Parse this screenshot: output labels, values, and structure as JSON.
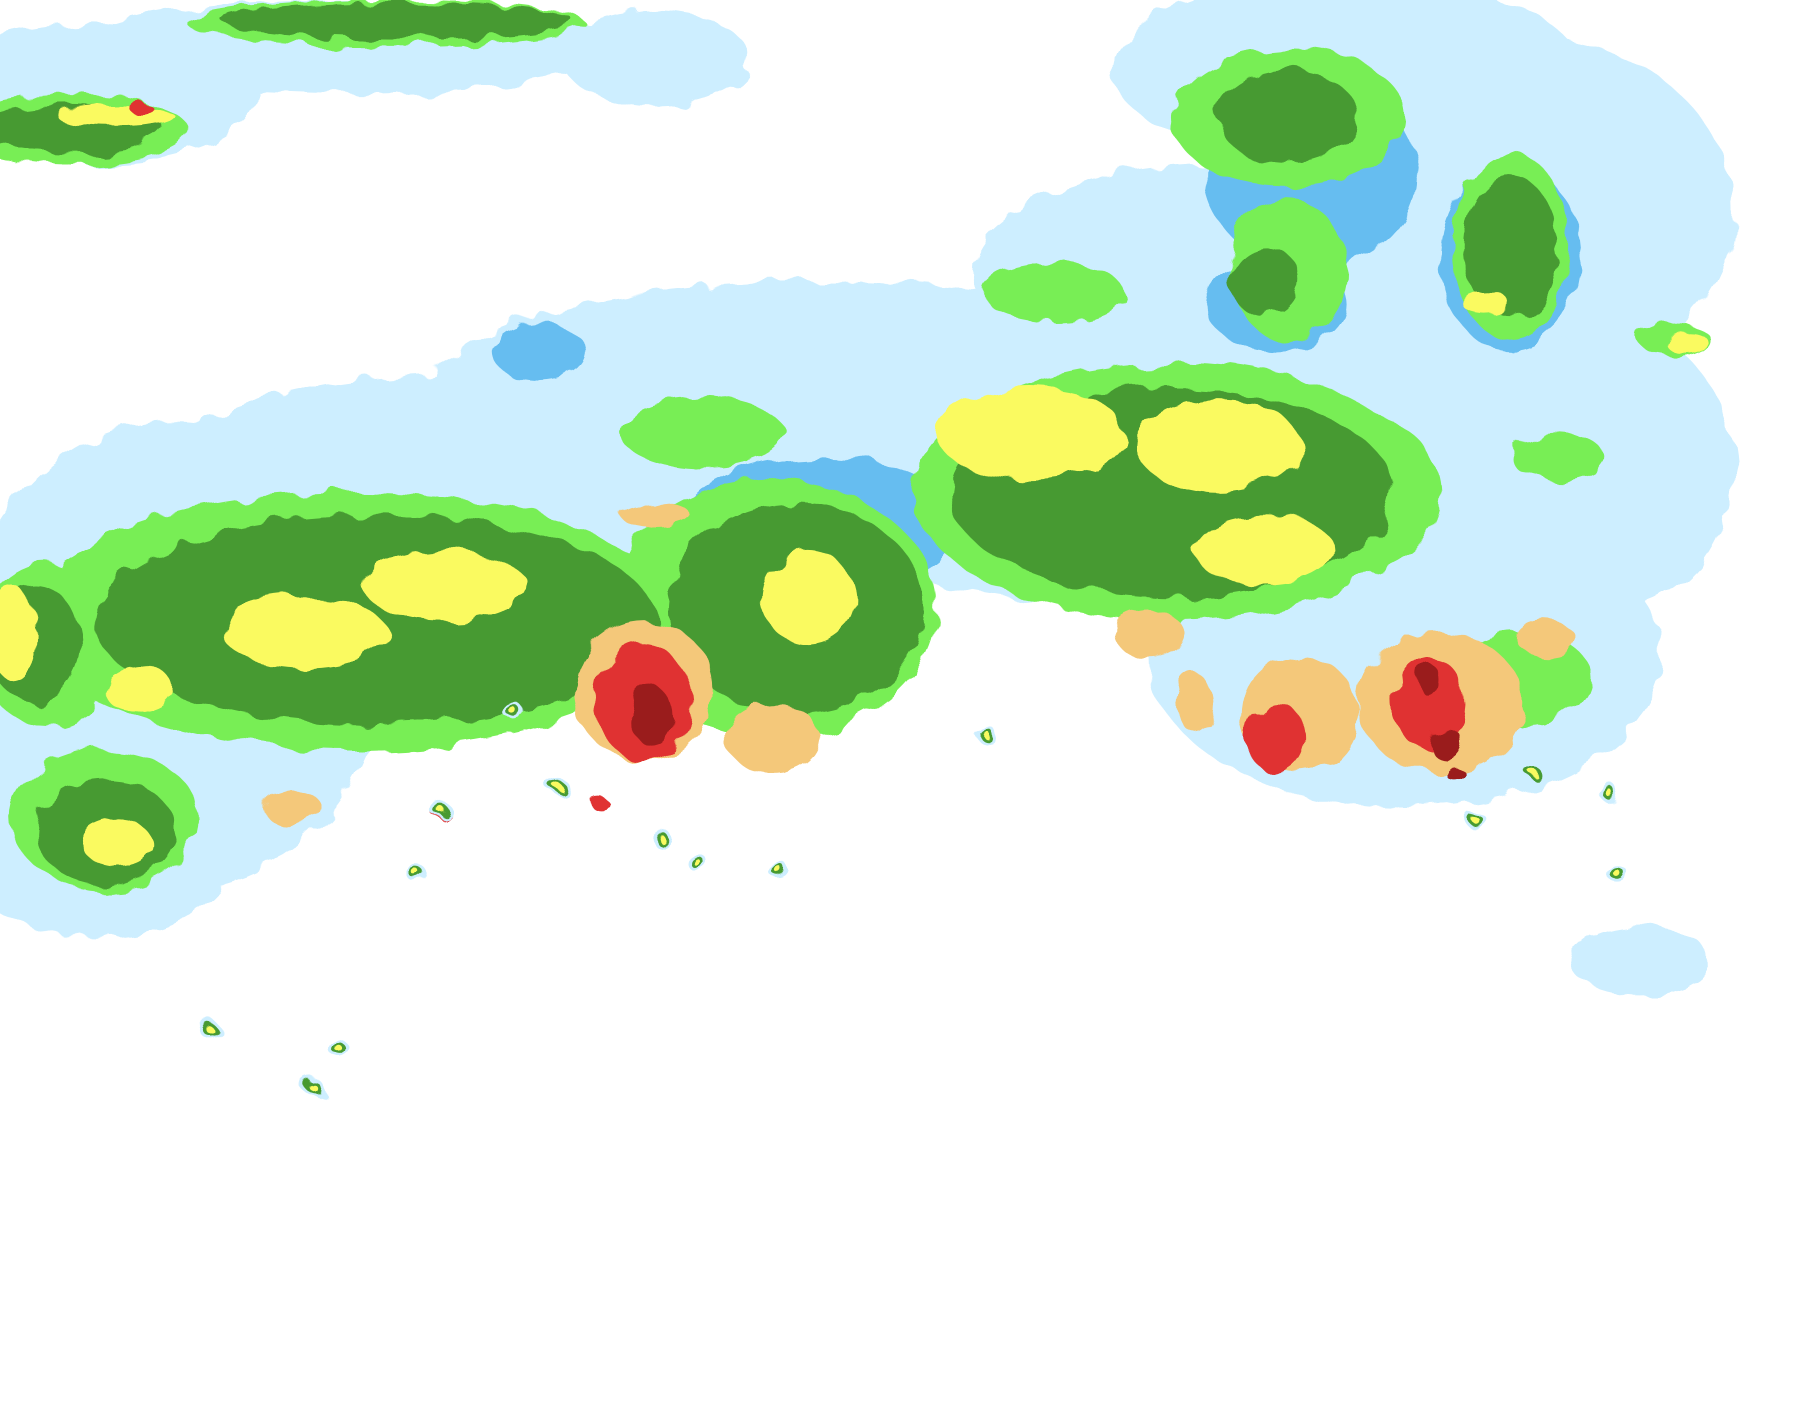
{
  "map": {
    "layer": "precipitation-radar",
    "background_color": "#ffffff",
    "intensity_colors": [
      "#cdeeff",
      "#66bdf0",
      "#78ee55",
      "#469a33",
      "#fafa60",
      "#f4c87a",
      "#e03030",
      "#9a1a1a"
    ]
  }
}
